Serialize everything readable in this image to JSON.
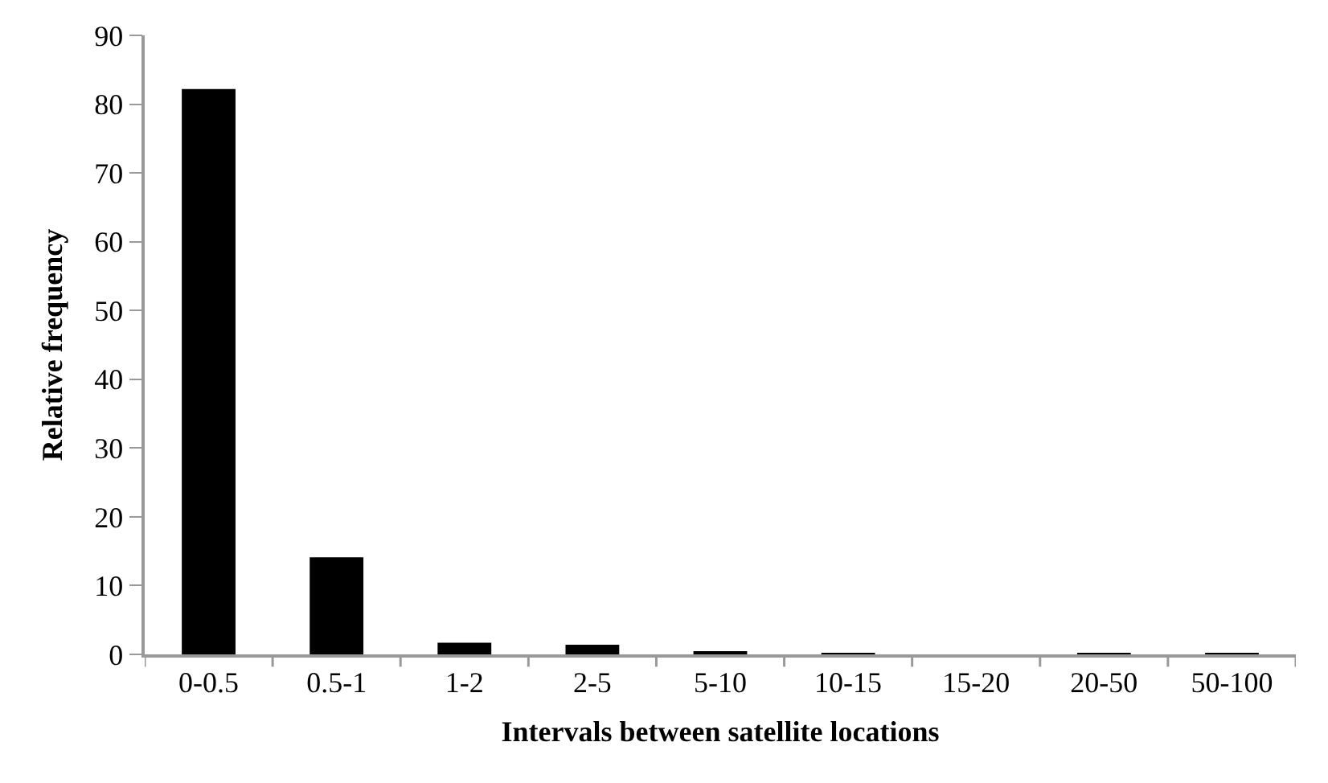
{
  "chart_data": {
    "type": "bar",
    "xlabel": "Intervals between satellite locations",
    "ylabel": "Relative frequency",
    "categories": [
      "0-0.5",
      "0.5-1",
      "1-2",
      "2-5",
      "5-10",
      "10-15",
      "15-20",
      "20-50",
      "50-100"
    ],
    "values": [
      82.2,
      14.1,
      1.7,
      1.4,
      0.4,
      0.2,
      0,
      0.2,
      0.1
    ],
    "color": "#000000",
    "ylim": [
      0,
      90
    ],
    "yticks": [
      0,
      10,
      20,
      30,
      40,
      50,
      60,
      70,
      80,
      90
    ]
  }
}
